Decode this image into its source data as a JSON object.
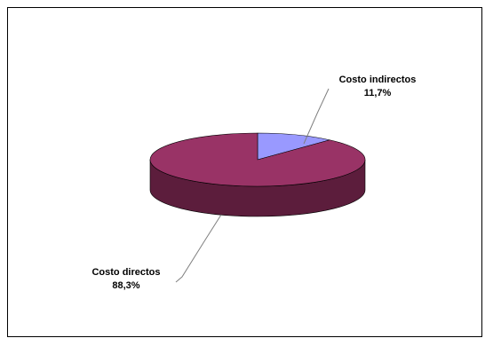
{
  "chart_data": {
    "type": "pie",
    "style": "3d",
    "title": "",
    "slices": [
      {
        "label": "Costo indirectos",
        "value": 11.7,
        "value_label": "11,7%",
        "color": "#9999ff",
        "side_color": "#5f5fa3"
      },
      {
        "label": "Costo directos",
        "value": 88.3,
        "value_label": "88,3%",
        "color": "#993366",
        "side_color": "#5c1d3c"
      }
    ],
    "legend": "none",
    "label_placement": "outside-with-leader-lines"
  }
}
